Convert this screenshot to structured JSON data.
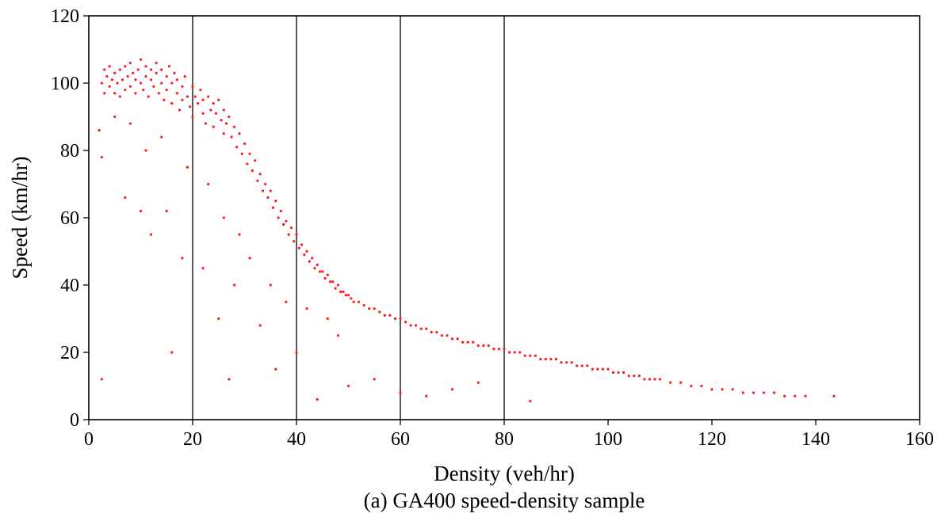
{
  "chart_data": {
    "type": "scatter",
    "title": "(a) GA400 speed-density sample",
    "xlabel": "Density (veh/hr)",
    "ylabel": "Speed (km/hr)",
    "xlim": [
      0,
      160
    ],
    "ylim": [
      0,
      120
    ],
    "xticks": [
      0,
      20,
      40,
      60,
      80,
      100,
      120,
      140,
      160
    ],
    "yticks": [
      0,
      20,
      40,
      60,
      80,
      100,
      120
    ],
    "xtick_labels": [
      "0",
      "20",
      "40",
      "60",
      "80",
      "100",
      "120",
      "140",
      "160"
    ],
    "ytick_labels": [
      "0",
      "20",
      "40",
      "60",
      "80",
      "100",
      "120"
    ],
    "vertical_lines": [
      20,
      40,
      60,
      80
    ],
    "grid": false,
    "legend": "none",
    "marker_color": "#ff1a1a",
    "series": [
      {
        "values_note_free": true,
        "points": [
          [
            2.5,
            100
          ],
          [
            3,
            104
          ],
          [
            3,
            97
          ],
          [
            3.5,
            102
          ],
          [
            4,
            99
          ],
          [
            4,
            105
          ],
          [
            4.5,
            101
          ],
          [
            5,
            97
          ],
          [
            5,
            103
          ],
          [
            5.5,
            100
          ],
          [
            6,
            104
          ],
          [
            6,
            96
          ],
          [
            6.5,
            101
          ],
          [
            7,
            98
          ],
          [
            7,
            105
          ],
          [
            7.5,
            102
          ],
          [
            8,
            99
          ],
          [
            8,
            106
          ],
          [
            8.5,
            103
          ],
          [
            9,
            97
          ],
          [
            9,
            101
          ],
          [
            9.5,
            104
          ],
          [
            10,
            100
          ],
          [
            10,
            107
          ],
          [
            10.5,
            98
          ],
          [
            11,
            102
          ],
          [
            11,
            105
          ],
          [
            11.5,
            96
          ],
          [
            12,
            101
          ],
          [
            12,
            104
          ],
          [
            12.5,
            99
          ],
          [
            13,
            103
          ],
          [
            13,
            106
          ],
          [
            13.5,
            97
          ],
          [
            14,
            100
          ],
          [
            14,
            104
          ],
          [
            14.5,
            95
          ],
          [
            15,
            102
          ],
          [
            15,
            98
          ],
          [
            15.5,
            105
          ],
          [
            16,
            100
          ],
          [
            16,
            94
          ],
          [
            16.5,
            103
          ],
          [
            17,
            97
          ],
          [
            17,
            101
          ],
          [
            17.5,
            92
          ],
          [
            18,
            99
          ],
          [
            18,
            95
          ],
          [
            18.5,
            102
          ],
          [
            19,
            96
          ],
          [
            19.5,
            93
          ],
          [
            20,
            99
          ],
          [
            20,
            90
          ],
          [
            20.5,
            96
          ],
          [
            21,
            94
          ],
          [
            21.5,
            98
          ],
          [
            22,
            91
          ],
          [
            22,
            95
          ],
          [
            22.5,
            88
          ],
          [
            23,
            96
          ],
          [
            23.5,
            92
          ],
          [
            24,
            94
          ],
          [
            24,
            87
          ],
          [
            24.5,
            91
          ],
          [
            25,
            95
          ],
          [
            25.5,
            89
          ],
          [
            26,
            92
          ],
          [
            26,
            85
          ],
          [
            26.5,
            88
          ],
          [
            27,
            90
          ],
          [
            27.5,
            84
          ],
          [
            28,
            87
          ],
          [
            28.5,
            81
          ],
          [
            29,
            85
          ],
          [
            29.5,
            79
          ],
          [
            30,
            82
          ],
          [
            30.5,
            76
          ],
          [
            31,
            79
          ],
          [
            31.5,
            74
          ],
          [
            32,
            77
          ],
          [
            32.5,
            71
          ],
          [
            33,
            73
          ],
          [
            33.5,
            68
          ],
          [
            34,
            70
          ],
          [
            34.5,
            66
          ],
          [
            35,
            68
          ],
          [
            35.5,
            63
          ],
          [
            36,
            65
          ],
          [
            36.5,
            60
          ],
          [
            37,
            62
          ],
          [
            37.5,
            58
          ],
          [
            38,
            59
          ],
          [
            38.5,
            55
          ],
          [
            39,
            57
          ],
          [
            39.5,
            53
          ],
          [
            40,
            55
          ],
          [
            40.5,
            51
          ],
          [
            41,
            52
          ],
          [
            41.5,
            49
          ],
          [
            42,
            50
          ],
          [
            42.5,
            47
          ],
          [
            43,
            48
          ],
          [
            43.5,
            45
          ],
          [
            44,
            46
          ],
          [
            44.5,
            44
          ],
          [
            45,
            44
          ],
          [
            45.5,
            42
          ],
          [
            46,
            43
          ],
          [
            46.5,
            41
          ],
          [
            47,
            41
          ],
          [
            47.5,
            39
          ],
          [
            48,
            40
          ],
          [
            48.5,
            38
          ],
          [
            49,
            38
          ],
          [
            49.5,
            37
          ],
          [
            50,
            37
          ],
          [
            50.5,
            36
          ],
          [
            51,
            35
          ],
          [
            52,
            35
          ],
          [
            53,
            34
          ],
          [
            54,
            33
          ],
          [
            55,
            33
          ],
          [
            56,
            32
          ],
          [
            57,
            31
          ],
          [
            58,
            31
          ],
          [
            59,
            30
          ],
          [
            60,
            30
          ],
          [
            61,
            29
          ],
          [
            62,
            28
          ],
          [
            63,
            28
          ],
          [
            64,
            27
          ],
          [
            65,
            27
          ],
          [
            66,
            26
          ],
          [
            67,
            26
          ],
          [
            68,
            25
          ],
          [
            69,
            25
          ],
          [
            70,
            24
          ],
          [
            71,
            24
          ],
          [
            72,
            23
          ],
          [
            73,
            23
          ],
          [
            74,
            23
          ],
          [
            75,
            22
          ],
          [
            76,
            22
          ],
          [
            77,
            22
          ],
          [
            78,
            21
          ],
          [
            79,
            21
          ],
          [
            80,
            21
          ],
          [
            81,
            20
          ],
          [
            82,
            20
          ],
          [
            83,
            20
          ],
          [
            84,
            19
          ],
          [
            85,
            19
          ],
          [
            86,
            19
          ],
          [
            87,
            18
          ],
          [
            88,
            18
          ],
          [
            89,
            18
          ],
          [
            90,
            18
          ],
          [
            91,
            17
          ],
          [
            92,
            17
          ],
          [
            93,
            17
          ],
          [
            94,
            16
          ],
          [
            95,
            16
          ],
          [
            96,
            16
          ],
          [
            97,
            15
          ],
          [
            98,
            15
          ],
          [
            99,
            15
          ],
          [
            100,
            15
          ],
          [
            101,
            14
          ],
          [
            102,
            14
          ],
          [
            103,
            14
          ],
          [
            104,
            13
          ],
          [
            105,
            13
          ],
          [
            106,
            13
          ],
          [
            107,
            12
          ],
          [
            108,
            12
          ],
          [
            109,
            12
          ],
          [
            110,
            12
          ],
          [
            112,
            11
          ],
          [
            114,
            11
          ],
          [
            116,
            10
          ],
          [
            118,
            10
          ],
          [
            120,
            9
          ],
          [
            122,
            9
          ],
          [
            124,
            9
          ],
          [
            126,
            8
          ],
          [
            128,
            8
          ],
          [
            130,
            8
          ],
          [
            132,
            8
          ],
          [
            134,
            7
          ],
          [
            136,
            7
          ],
          [
            138,
            7
          ],
          [
            143.5,
            7
          ],
          [
            2.5,
            12
          ],
          [
            16,
            20
          ],
          [
            12,
            55
          ],
          [
            15,
            62
          ],
          [
            18,
            48
          ],
          [
            25,
            30
          ],
          [
            27,
            12
          ],
          [
            36,
            15
          ],
          [
            40,
            20
          ],
          [
            44,
            6
          ],
          [
            50,
            10
          ],
          [
            55,
            12
          ],
          [
            60,
            8
          ],
          [
            65,
            7
          ],
          [
            70,
            9
          ],
          [
            75,
            11
          ],
          [
            85,
            5.5
          ],
          [
            7,
            66
          ],
          [
            10,
            62
          ],
          [
            22,
            45
          ],
          [
            28,
            40
          ],
          [
            33,
            28
          ],
          [
            2.5,
            78
          ],
          [
            2,
            86
          ],
          [
            5,
            90
          ],
          [
            8,
            88
          ],
          [
            11,
            80
          ],
          [
            14,
            84
          ],
          [
            19,
            75
          ],
          [
            23,
            70
          ],
          [
            26,
            60
          ],
          [
            29,
            55
          ],
          [
            31,
            48
          ],
          [
            35,
            40
          ],
          [
            38,
            35
          ],
          [
            42,
            33
          ],
          [
            46,
            30
          ],
          [
            48,
            25
          ]
        ]
      }
    ]
  }
}
